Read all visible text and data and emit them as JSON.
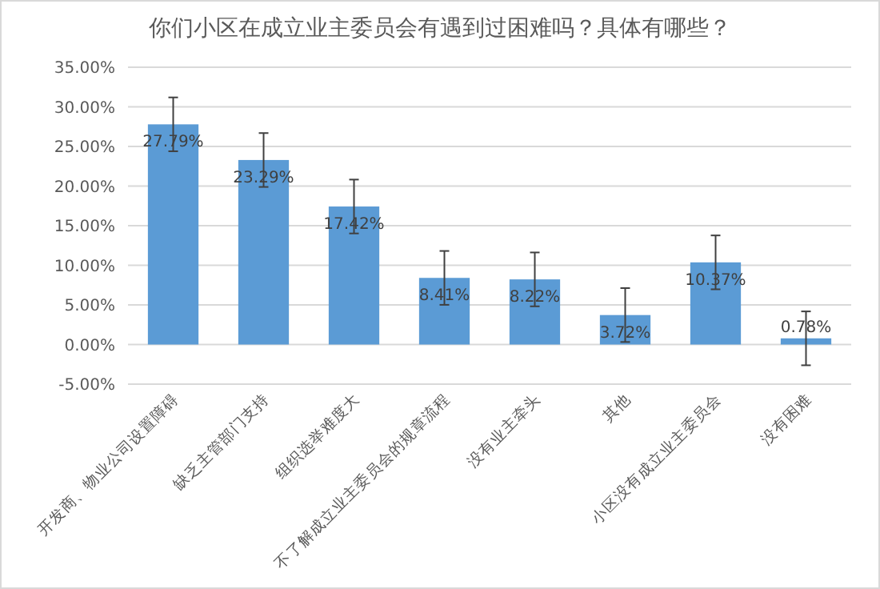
{
  "chart_data": {
    "type": "bar",
    "title": "你们小区在成立业主委员会有遇到过困难吗？具体有哪些？",
    "categories": [
      "开发商、物业公司设置障碍",
      "缺乏主管部门支持",
      "组织选举难度大",
      "不了解成立业主委员会的规章流程",
      "没有业主牵头",
      "其他",
      "小区没有成立业主委员会",
      "没有困难"
    ],
    "values": [
      27.79,
      23.29,
      17.42,
      8.41,
      8.22,
      3.72,
      10.37,
      0.78
    ],
    "value_labels": [
      "27.79%",
      "23.29%",
      "17.42%",
      "8.41%",
      "8.22%",
      "3.72%",
      "10.37%",
      "0.78%"
    ],
    "errors": [
      3.4,
      3.4,
      3.4,
      3.4,
      3.4,
      3.4,
      3.4,
      3.4
    ],
    "color": "#5b9bd5",
    "ylim": [
      -5,
      35
    ],
    "yticks": [
      {
        "value": -5,
        "label": "-5.00%"
      },
      {
        "value": 0,
        "label": "0.00%"
      },
      {
        "value": 5,
        "label": "5.00%"
      },
      {
        "value": 10,
        "label": "10.00%"
      },
      {
        "value": 15,
        "label": "15.00%"
      },
      {
        "value": 20,
        "label": "20.00%"
      },
      {
        "value": 25,
        "label": "25.00%"
      },
      {
        "value": 30,
        "label": "30.00%"
      },
      {
        "value": 35,
        "label": "35.00%"
      }
    ],
    "grid": "y"
  }
}
